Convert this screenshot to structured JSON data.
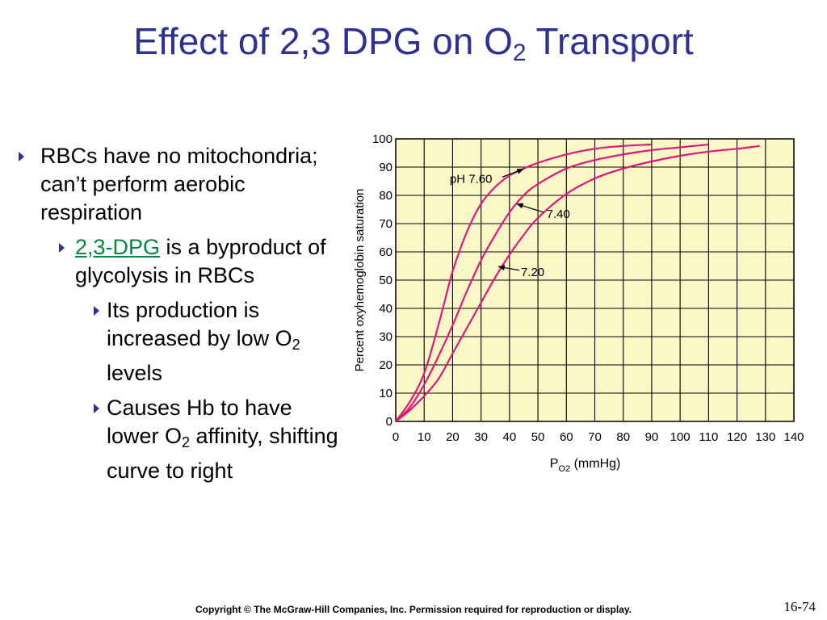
{
  "slide": {
    "title_main": "Effect of 2,3 DPG on O",
    "title_sub": "2",
    "title_end": " Transport",
    "copyright": "Copyright © The McGraw-Hill Companies, Inc. Permission required for reproduction or display.",
    "slide_number": "16-74"
  },
  "bullets": {
    "b1": "RBCs have no mitochondria; can’t perform aerobic respiration",
    "b2_link": "2,3-DPG",
    "b2_rest": " is a byproduct of glycolysis in RBCs",
    "b3a_pre": "Its production is increased by low O",
    "b3a_sub": "2",
    "b3a_post": " levels",
    "b3b_pre": "Causes Hb to have lower O",
    "b3b_sub": "2",
    "b3b_post": " affinity, shifting curve to right"
  },
  "colors": {
    "title": "#2e3192",
    "curve": "#e0177b",
    "plot_bg": "#fbf7c6",
    "link": "#008a3e"
  },
  "chart_data": {
    "type": "line",
    "xlabel": "P",
    "xlabel_sub": "O2",
    "xlabel_unit": "(mmHg)",
    "ylabel": "Percent oxyhemoglobin saturation",
    "xlim": [
      0,
      140
    ],
    "ylim": [
      0,
      100
    ],
    "x_ticks": [
      0,
      10,
      20,
      30,
      40,
      50,
      60,
      70,
      80,
      90,
      100,
      110,
      120,
      130,
      140
    ],
    "y_ticks": [
      0,
      10,
      20,
      30,
      40,
      50,
      60,
      70,
      80,
      90,
      100
    ],
    "grid": true,
    "series": [
      {
        "name": "pH 7.60",
        "x": [
          0,
          5,
          10,
          15,
          20,
          25,
          30,
          35,
          40,
          45,
          50,
          60,
          70,
          80,
          90
        ],
        "y": [
          0,
          7,
          17,
          34,
          53,
          67,
          77,
          83,
          87,
          89.5,
          91.5,
          94.5,
          96.5,
          97.5,
          98
        ]
      },
      {
        "name": "7.40",
        "x": [
          0,
          5,
          10,
          15,
          20,
          25,
          30,
          35,
          40,
          45,
          50,
          60,
          70,
          80,
          90,
          100,
          110
        ],
        "y": [
          0,
          5,
          13,
          23,
          34,
          46,
          57,
          66,
          74,
          80,
          84,
          89.5,
          92.5,
          94.5,
          96,
          97,
          98
        ]
      },
      {
        "name": "7.20",
        "x": [
          0,
          5,
          10,
          15,
          20,
          25,
          30,
          35,
          40,
          45,
          50,
          60,
          70,
          80,
          90,
          100,
          110,
          120,
          128
        ],
        "y": [
          0,
          4,
          9,
          15,
          24,
          33,
          42,
          51,
          59,
          66,
          72,
          80.5,
          86,
          89.5,
          92,
          94,
          95.5,
          96.5,
          97.5
        ]
      }
    ],
    "annotations": [
      "pH 7.60",
      "7.40",
      "7.20"
    ]
  }
}
